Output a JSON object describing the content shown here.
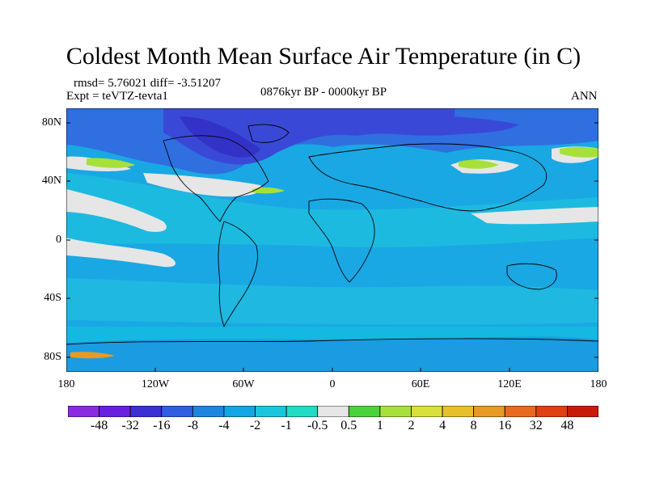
{
  "title": "Coldest Month Mean Surface Air Temperature (in C)",
  "stats": "rmsd= 5.76021 diff= -3.51207",
  "experiment": "Expt = teVTZ-tevta1",
  "period": "0876kyr BP - 0000kyr BP",
  "season": "ANN",
  "lat_labels": [
    "80N",
    "40N",
    "0",
    "40S",
    "80S"
  ],
  "lon_labels": [
    "180",
    "120W",
    "60W",
    "0",
    "60E",
    "120E",
    "180"
  ],
  "colorbar": {
    "levels": [
      "-48",
      "-32",
      "-16",
      "-8",
      "-4",
      "-2",
      "-1",
      "-0.5",
      "0.5",
      "1",
      "2",
      "4",
      "8",
      "16",
      "32",
      "48"
    ],
    "colors": [
      "#8a2be2",
      "#6a1ee0",
      "#3c2fd6",
      "#2f5fdf",
      "#1e86e0",
      "#13a6e4",
      "#1ac6de",
      "#21dcc4",
      "#e6e6e6",
      "#4ad23a",
      "#a8e03a",
      "#d8e03a",
      "#e8c02a",
      "#e89a22",
      "#e86a1e",
      "#e04012",
      "#c81a0a"
    ]
  }
}
